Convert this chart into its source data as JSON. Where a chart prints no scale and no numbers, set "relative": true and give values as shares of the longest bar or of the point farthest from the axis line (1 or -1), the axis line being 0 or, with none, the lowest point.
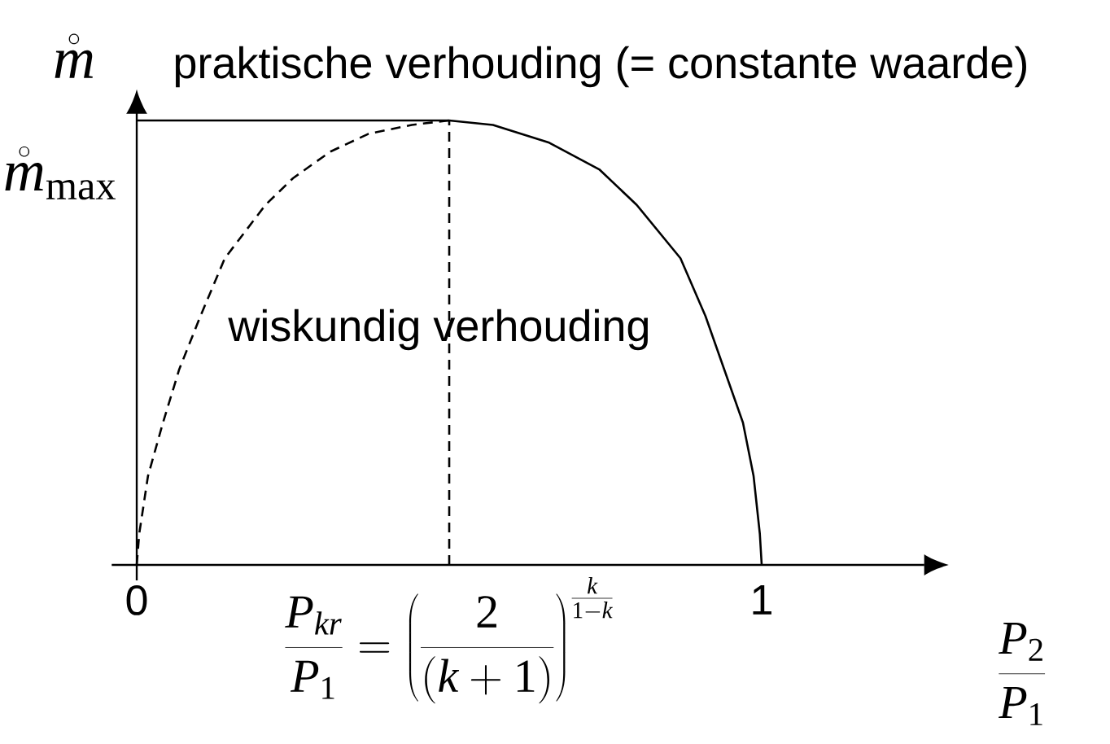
{
  "chart_data": {
    "type": "line",
    "relative": true,
    "xlabel": "\\frac{P_2}{P_1}",
    "ylabel": "\\mathring{m}",
    "xlim": [
      -0.04,
      1.26
    ],
    "xticks": [
      0,
      1
    ],
    "series": [
      {
        "name": "praktische verhouding (= constante waarde)",
        "color": "#000000",
        "line_style": "solid",
        "x": [
          0,
          0.5,
          0.57,
          0.66,
          0.74,
          0.8,
          0.87,
          0.91,
          0.94,
          0.97,
          0.987,
          0.997,
          1
        ],
        "values": [
          1,
          1,
          0.99,
          0.95,
          0.89,
          0.81,
          0.69,
          0.56,
          0.44,
          0.32,
          0.2,
          0.07,
          0
        ]
      },
      {
        "name": "wiskundig verhouding",
        "color": "#000000",
        "line_style": "dashed",
        "x": [
          0,
          0.004,
          0.018,
          0.042,
          0.068,
          0.102,
          0.141,
          0.206,
          0.25,
          0.31,
          0.371,
          0.44,
          0.5
        ],
        "values": [
          0,
          0.07,
          0.2,
          0.32,
          0.44,
          0.56,
          0.69,
          0.81,
          0.87,
          0.93,
          0.97,
          0.99,
          1
        ]
      }
    ],
    "ref_lines": [
      {
        "axis": "x",
        "value": 0.5,
        "line_style": "dashed",
        "color": "#000000"
      }
    ],
    "annotations": [
      {
        "text": "\\mathring{m}_{\\max}",
        "x": 0,
        "y": 1
      },
      {
        "text": "\\frac{P_{kr}}{P_1}=\\left(\\frac{2}{(k+1)}\\right)^{\\frac{k}{1-k}}",
        "x": 0.5,
        "y": 0
      }
    ]
  }
}
